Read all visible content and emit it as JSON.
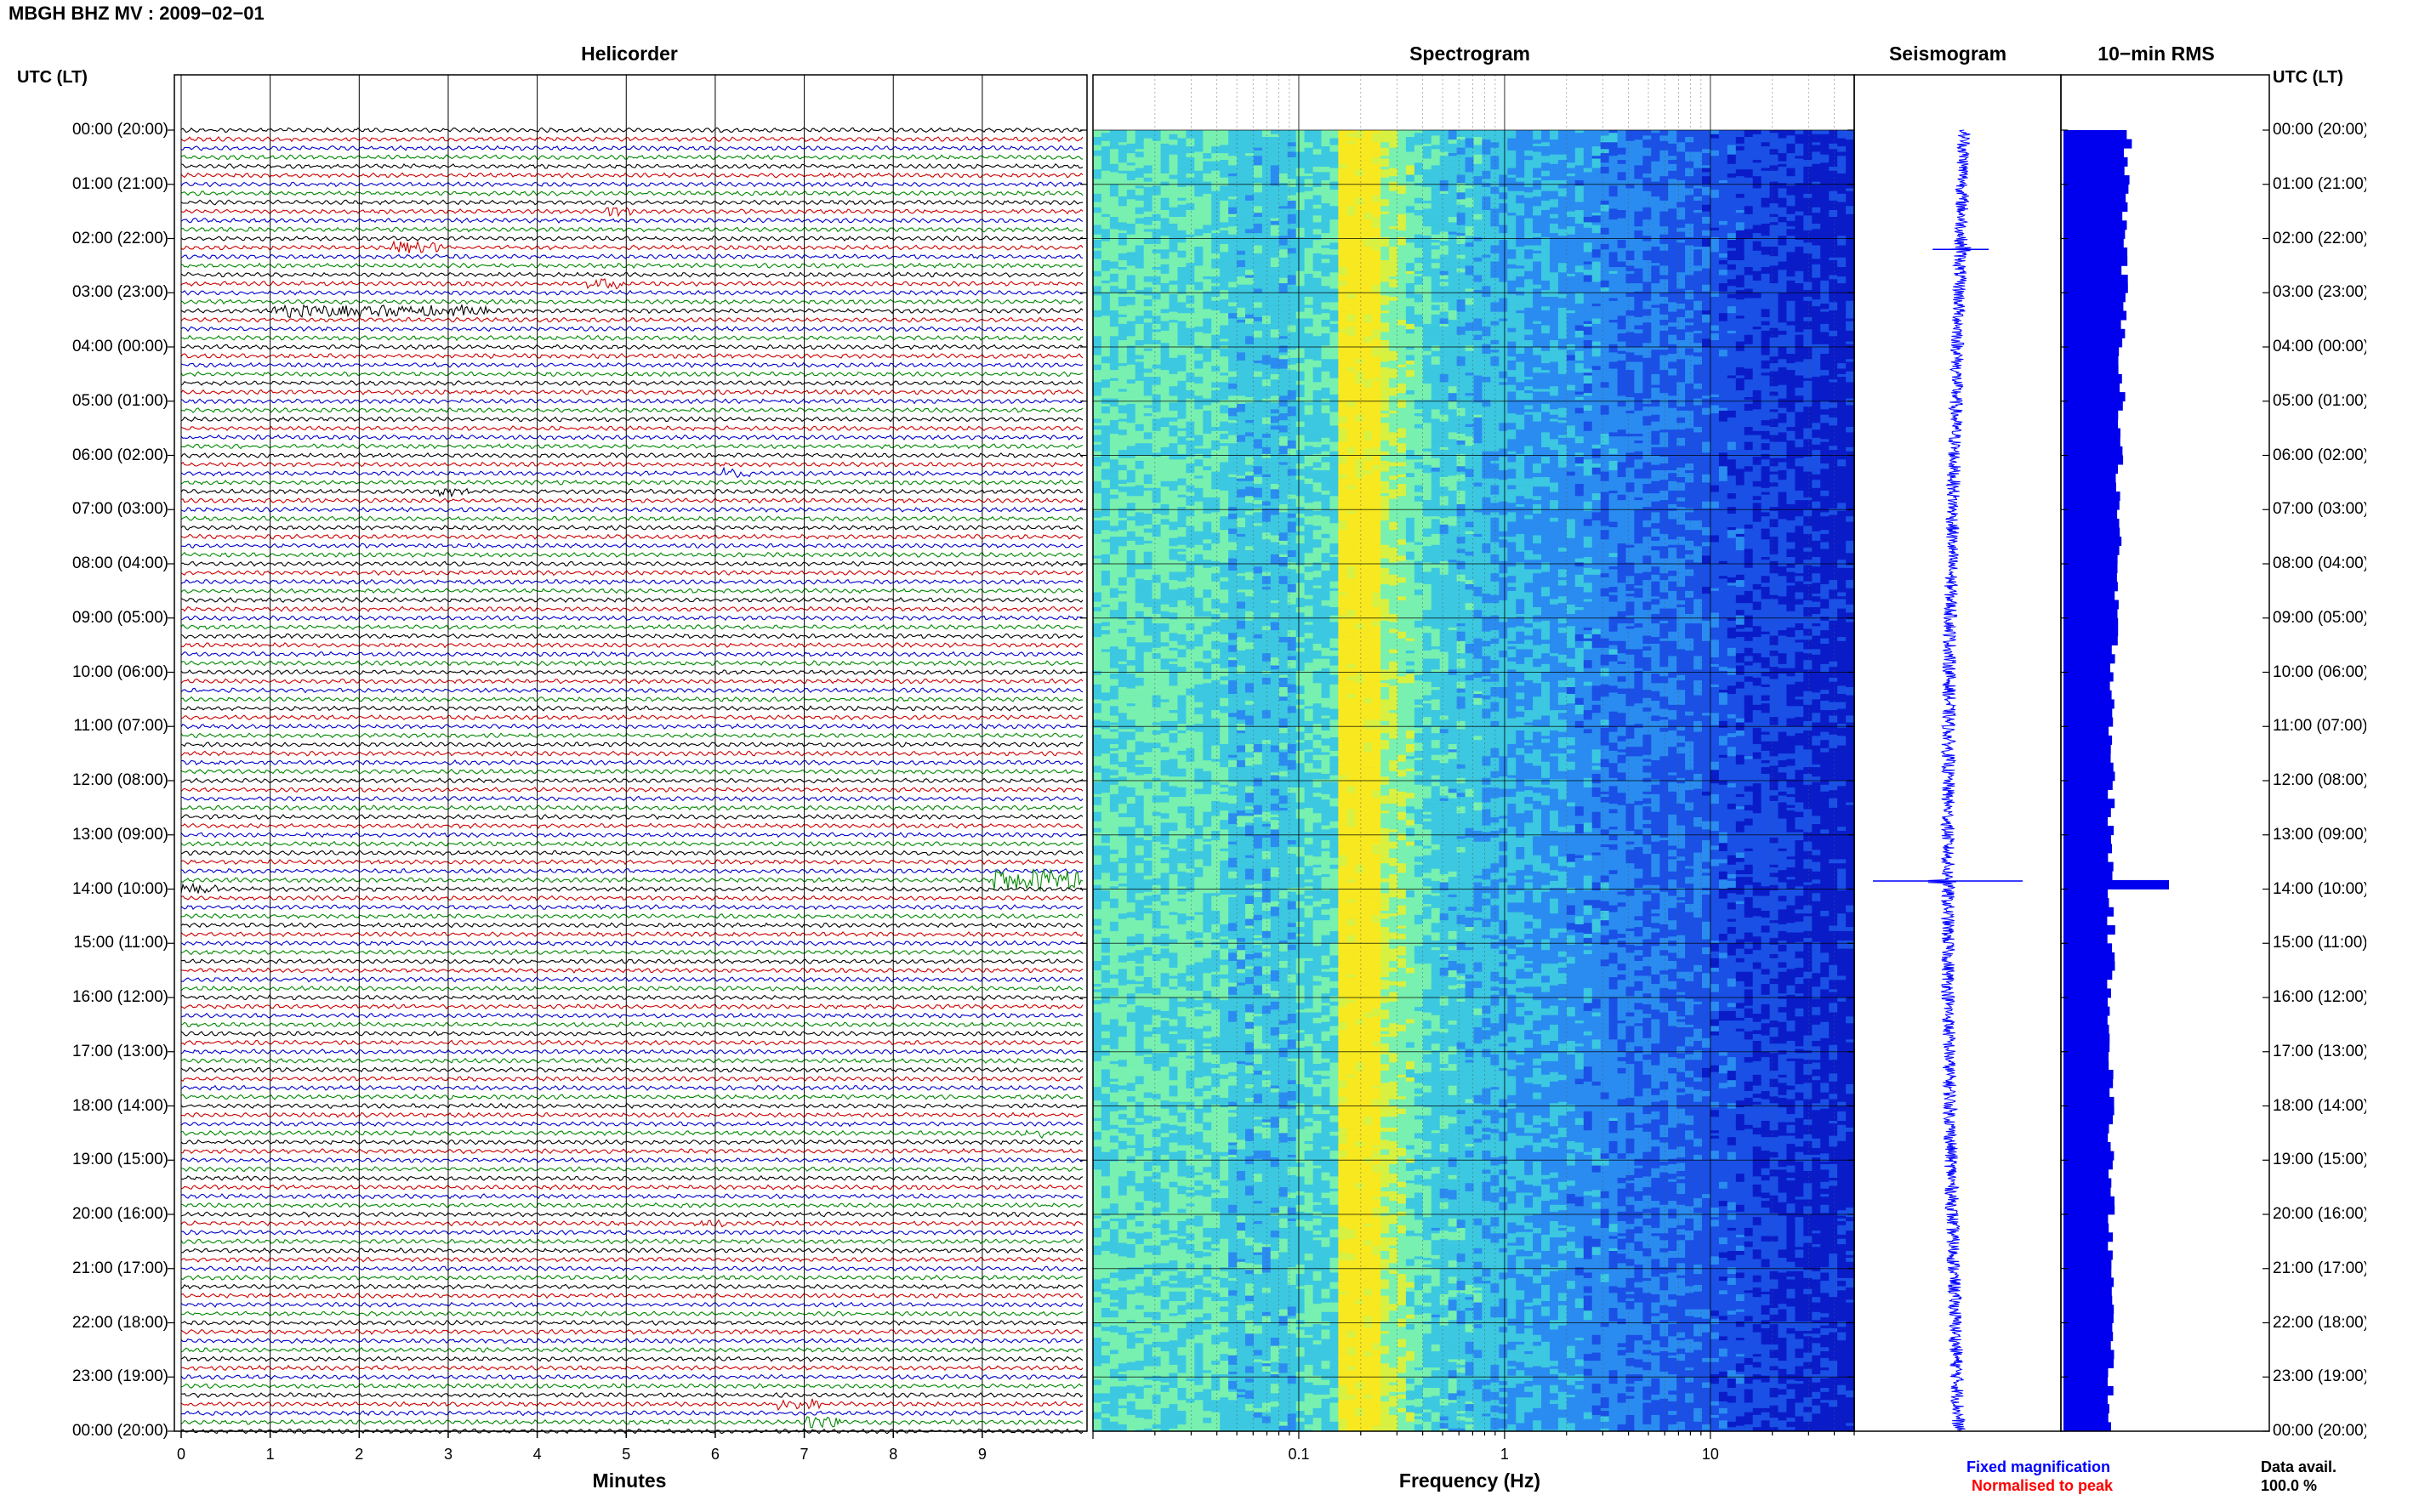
{
  "header": {
    "title": "MBGH BHZ MV : 2009−02−01"
  },
  "panels": {
    "helicorder": "Helicorder",
    "spectrogram": "Spectrogram",
    "seismogram": "Seismogram",
    "rms": "10−min RMS"
  },
  "axis_left_header": "UTC (LT)",
  "axis_right_header": "UTC (LT)",
  "time_labels": [
    "00:00 (20:00)",
    "01:00 (21:00)",
    "02:00 (22:00)",
    "03:00 (23:00)",
    "04:00 (00:00)",
    "05:00 (01:00)",
    "06:00 (02:00)",
    "07:00 (03:00)",
    "08:00 (04:00)",
    "09:00 (05:00)",
    "10:00 (06:00)",
    "11:00 (07:00)",
    "12:00 (08:00)",
    "13:00 (09:00)",
    "14:00 (10:00)",
    "15:00 (11:00)",
    "16:00 (12:00)",
    "17:00 (13:00)",
    "18:00 (14:00)",
    "19:00 (15:00)",
    "20:00 (16:00)",
    "21:00 (17:00)",
    "22:00 (18:00)",
    "23:00 (19:00)",
    "00:00 (20:00)"
  ],
  "legend": {
    "fixed": "Fixed magnification",
    "normalised": "Normalised to peak",
    "fixed_color": "#0000ff",
    "normalised_color": "#ff0000"
  },
  "data_availability": {
    "label": "Data avail.",
    "value": "100.0 %"
  },
  "chart_data": [
    {
      "type": "line",
      "title": "Helicorder",
      "xlabel": "Minutes",
      "x_ticks": [
        "0",
        "1",
        "2",
        "3",
        "4",
        "5",
        "6",
        "7",
        "8",
        "9"
      ],
      "xlim": [
        0,
        10
      ],
      "rows_per_hour": 6,
      "trace_colors": [
        "#000000",
        "#cc0000",
        "#0000cc",
        "#008800"
      ],
      "events": [
        {
          "hour": 1.5,
          "minute": 4.7,
          "duration_min": 0.3,
          "amp": 4
        },
        {
          "hour": 2.1,
          "minute": 2.3,
          "duration_min": 0.6,
          "amp": 7
        },
        {
          "hour": 2.8,
          "minute": 4.5,
          "duration_min": 0.4,
          "amp": 5
        },
        {
          "hour": 3.3,
          "minute": 1.0,
          "duration_min": 2.4,
          "amp": 6
        },
        {
          "hour": 6.3,
          "minute": 6.0,
          "duration_min": 0.3,
          "amp": 4
        },
        {
          "hour": 6.7,
          "minute": 2.8,
          "duration_min": 0.4,
          "amp": 4
        },
        {
          "hour": 13.8,
          "minute": 9.0,
          "duration_min": 1.0,
          "amp": 12
        },
        {
          "hour": 13.95,
          "minute": 0.0,
          "duration_min": 0.4,
          "amp": 6
        },
        {
          "hour": 18.5,
          "minute": 9.3,
          "duration_min": 0.3,
          "amp": 3
        },
        {
          "hour": 20.1,
          "minute": 5.7,
          "duration_min": 0.3,
          "amp": 3
        },
        {
          "hour": 23.5,
          "minute": 6.5,
          "duration_min": 0.6,
          "amp": 5
        },
        {
          "hour": 23.8,
          "minute": 6.9,
          "duration_min": 0.4,
          "amp": 6
        }
      ]
    },
    {
      "type": "heatmap",
      "title": "Spectrogram",
      "xlabel": "Frequency (Hz)",
      "x_scale": "log",
      "xlim": [
        0.01,
        50
      ],
      "x_ticks": [
        "0.1",
        "1",
        "10"
      ],
      "colormap": [
        "#0a1cc8",
        "#1a50e6",
        "#2a8cf0",
        "#3cc8e0",
        "#78f0b0",
        "#d8f040",
        "#f8e820"
      ],
      "peak_frequency_hz": 0.2
    },
    {
      "type": "line",
      "title": "Seismogram",
      "events": [
        {
          "hour": 2.2,
          "amp": 1.5
        },
        {
          "hour": 13.85,
          "amp": 4.0
        }
      ]
    },
    {
      "type": "bar",
      "title": "10−min RMS",
      "orientation": "horizontal",
      "event_hour": 13.85,
      "event_value": 1.55
    }
  ]
}
